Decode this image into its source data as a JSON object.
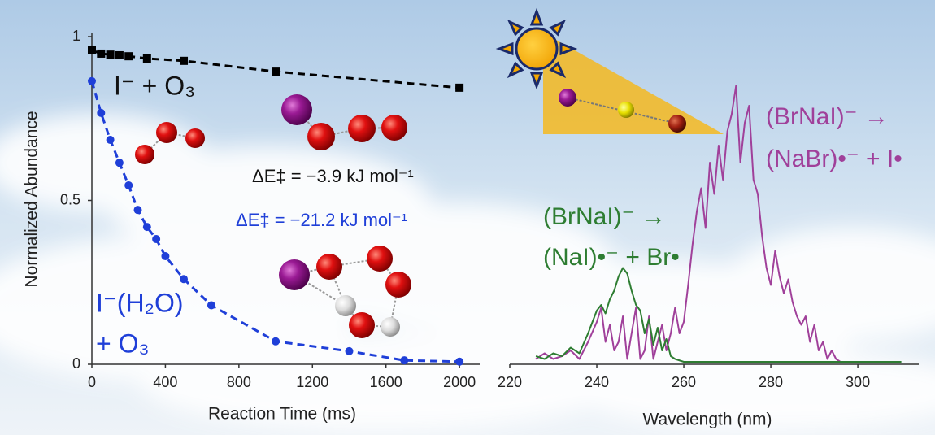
{
  "chart_data": [
    {
      "type": "line",
      "xlabel": "Reaction Time (ms)",
      "ylabel": "Normalized Abundance",
      "xlim": [
        0,
        2110
      ],
      "ylim": [
        0,
        1
      ],
      "xticks": [
        0,
        400,
        800,
        1200,
        1600,
        2000
      ],
      "yticks": [
        0,
        0.5,
        1
      ],
      "series": [
        {
          "color": "#000000",
          "marker": "square",
          "line_style": "dashed",
          "x": [
            0,
            50,
            100,
            150,
            200,
            300,
            500,
            1000,
            2000
          ],
          "values": [
            0.958,
            0.948,
            0.945,
            0.943,
            0.94,
            0.933,
            0.926,
            0.893,
            0.844
          ]
        },
        {
          "color": "#1f3fd8",
          "marker": "circle",
          "line_style": "dashed",
          "x": [
            0,
            50,
            100,
            150,
            200,
            250,
            300,
            350,
            400,
            500,
            650,
            1000,
            1400,
            1700,
            2000
          ],
          "values": [
            0.864,
            0.767,
            0.685,
            0.615,
            0.546,
            0.471,
            0.419,
            0.382,
            0.33,
            0.26,
            0.18,
            0.07,
            0.04,
            0.012,
            0.008
          ]
        }
      ],
      "annotations": [
        {
          "text": "I⁻ + O₃",
          "color": "#111111"
        },
        {
          "text": "ΔE‡ = −3.9 kJ mol⁻¹",
          "color": "#111111"
        },
        {
          "text": "ΔE‡ = −21.2 kJ mol⁻¹",
          "color": "#1f3fd8"
        },
        {
          "text": "I⁻(H₂O)",
          "color": "#1f3fd8"
        },
        {
          "text": "+ O₃",
          "color": "#1f3fd8"
        }
      ]
    },
    {
      "type": "line",
      "xlabel": "Wavelength (nm)",
      "xlim": [
        220,
        314
      ],
      "ylim": [
        0,
        1
      ],
      "xticks": [
        220,
        240,
        260,
        280,
        300
      ],
      "series": [
        {
          "color": "#a0409a",
          "marker": "none",
          "line_style": "solid",
          "x": [
            226,
            228,
            230,
            232,
            234,
            236,
            238,
            240,
            241,
            242,
            243,
            244,
            245,
            246,
            247,
            248,
            249,
            250,
            251,
            252,
            253,
            254,
            255,
            256,
            257,
            258,
            259,
            260,
            261,
            262,
            263,
            264,
            265,
            266,
            267,
            268,
            269,
            270,
            271,
            272,
            273,
            274,
            275,
            276,
            277,
            278,
            279,
            280,
            281,
            282,
            283,
            284,
            285,
            286,
            287,
            288,
            289,
            290,
            291,
            292,
            293,
            294,
            295,
            296
          ],
          "values": [
            0.01,
            0.03,
            0.01,
            0.02,
            0.04,
            0.01,
            0.07,
            0.14,
            0.19,
            0.07,
            0.13,
            0.04,
            0.07,
            0.16,
            0.01,
            0.1,
            0.19,
            0.01,
            0.04,
            0.16,
            0.01,
            0.07,
            0.13,
            0.04,
            0.1,
            0.19,
            0.1,
            0.14,
            0.27,
            0.41,
            0.53,
            0.61,
            0.47,
            0.7,
            0.59,
            0.76,
            0.64,
            0.81,
            0.87,
            0.97,
            0.7,
            0.84,
            0.9,
            0.64,
            0.59,
            0.44,
            0.33,
            0.27,
            0.39,
            0.3,
            0.24,
            0.29,
            0.21,
            0.16,
            0.13,
            0.16,
            0.07,
            0.13,
            0.04,
            0.07,
            0.01,
            0.04,
            0.01,
            0
          ]
        },
        {
          "color": "#2e7d32",
          "marker": "none",
          "line_style": "solid",
          "x": [
            226,
            228,
            230,
            232,
            234,
            236,
            238,
            240,
            241,
            242,
            243,
            244,
            245,
            246,
            247,
            248,
            249,
            250,
            251,
            252,
            253,
            254,
            255,
            256,
            257,
            258,
            260,
            262,
            310
          ],
          "values": [
            0.02,
            0.01,
            0.03,
            0.02,
            0.05,
            0.03,
            0.1,
            0.18,
            0.2,
            0.17,
            0.22,
            0.25,
            0.3,
            0.33,
            0.31,
            0.25,
            0.2,
            0.18,
            0.1,
            0.15,
            0.06,
            0.12,
            0.04,
            0.08,
            0.02,
            0.01,
            0,
            0,
            0
          ]
        }
      ],
      "annotations": [
        {
          "text": "(BrNaI)⁻ →",
          "color": "#a0409a"
        },
        {
          "text": "(NaBr)•⁻ + I•",
          "color": "#a0409a"
        },
        {
          "text": "(BrNaI)⁻ →",
          "color": "#2e7d32"
        },
        {
          "text": "(NaI)•⁻ + Br•",
          "color": "#2e7d32"
        }
      ]
    }
  ]
}
